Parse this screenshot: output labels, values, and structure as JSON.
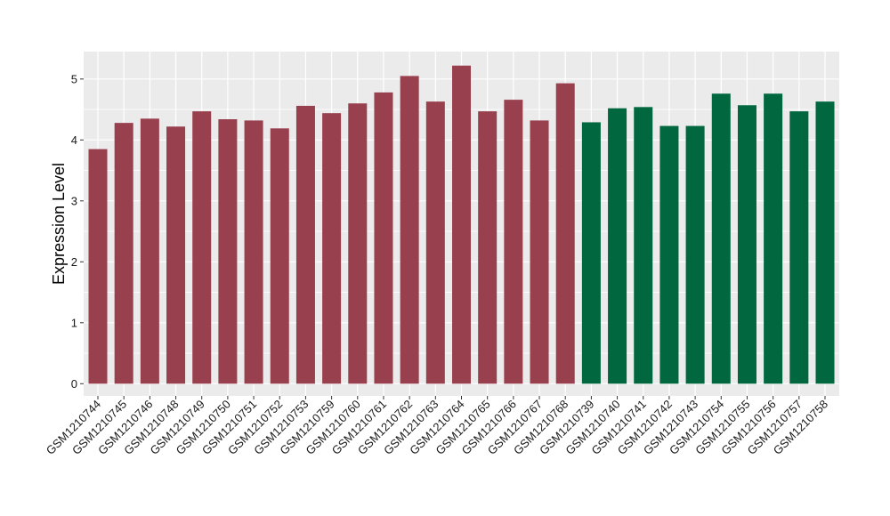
{
  "chart_data": {
    "type": "bar",
    "title": "",
    "xlabel": "",
    "ylabel": "Expression Level",
    "ylim": [
      -0.2,
      5.45
    ],
    "yticks": [
      0,
      1,
      2,
      3,
      4,
      5
    ],
    "grid": true,
    "categories": [
      "GSM1210744",
      "GSM1210745",
      "GSM1210746",
      "GSM1210748",
      "GSM1210749",
      "GSM1210750",
      "GSM1210751",
      "GSM1210752",
      "GSM1210753",
      "GSM1210759",
      "GSM1210760",
      "GSM1210761",
      "GSM1210762",
      "GSM1210763",
      "GSM1210764",
      "GSM1210765",
      "GSM1210766",
      "GSM1210767",
      "GSM1210768",
      "GSM1210739",
      "GSM1210740",
      "GSM1210741",
      "GSM1210742",
      "GSM1210743",
      "GSM1210754",
      "GSM1210755",
      "GSM1210756",
      "GSM1210757",
      "GSM1210758"
    ],
    "values": [
      3.85,
      4.28,
      4.35,
      4.22,
      4.47,
      4.34,
      4.32,
      4.19,
      4.56,
      4.44,
      4.6,
      4.78,
      5.05,
      4.63,
      5.22,
      4.47,
      4.66,
      4.32,
      4.93,
      4.29,
      4.52,
      4.54,
      4.23,
      4.23,
      4.76,
      4.57,
      4.76,
      4.47,
      4.63
    ],
    "group_index": [
      0,
      0,
      0,
      0,
      0,
      0,
      0,
      0,
      0,
      0,
      0,
      0,
      0,
      0,
      0,
      0,
      0,
      0,
      0,
      1,
      1,
      1,
      1,
      1,
      1,
      1,
      1,
      1,
      1
    ],
    "group_colors": [
      "#99404f",
      "#00673f"
    ],
    "panel_background": "#ebebeb",
    "grid_color": "#ffffff"
  }
}
